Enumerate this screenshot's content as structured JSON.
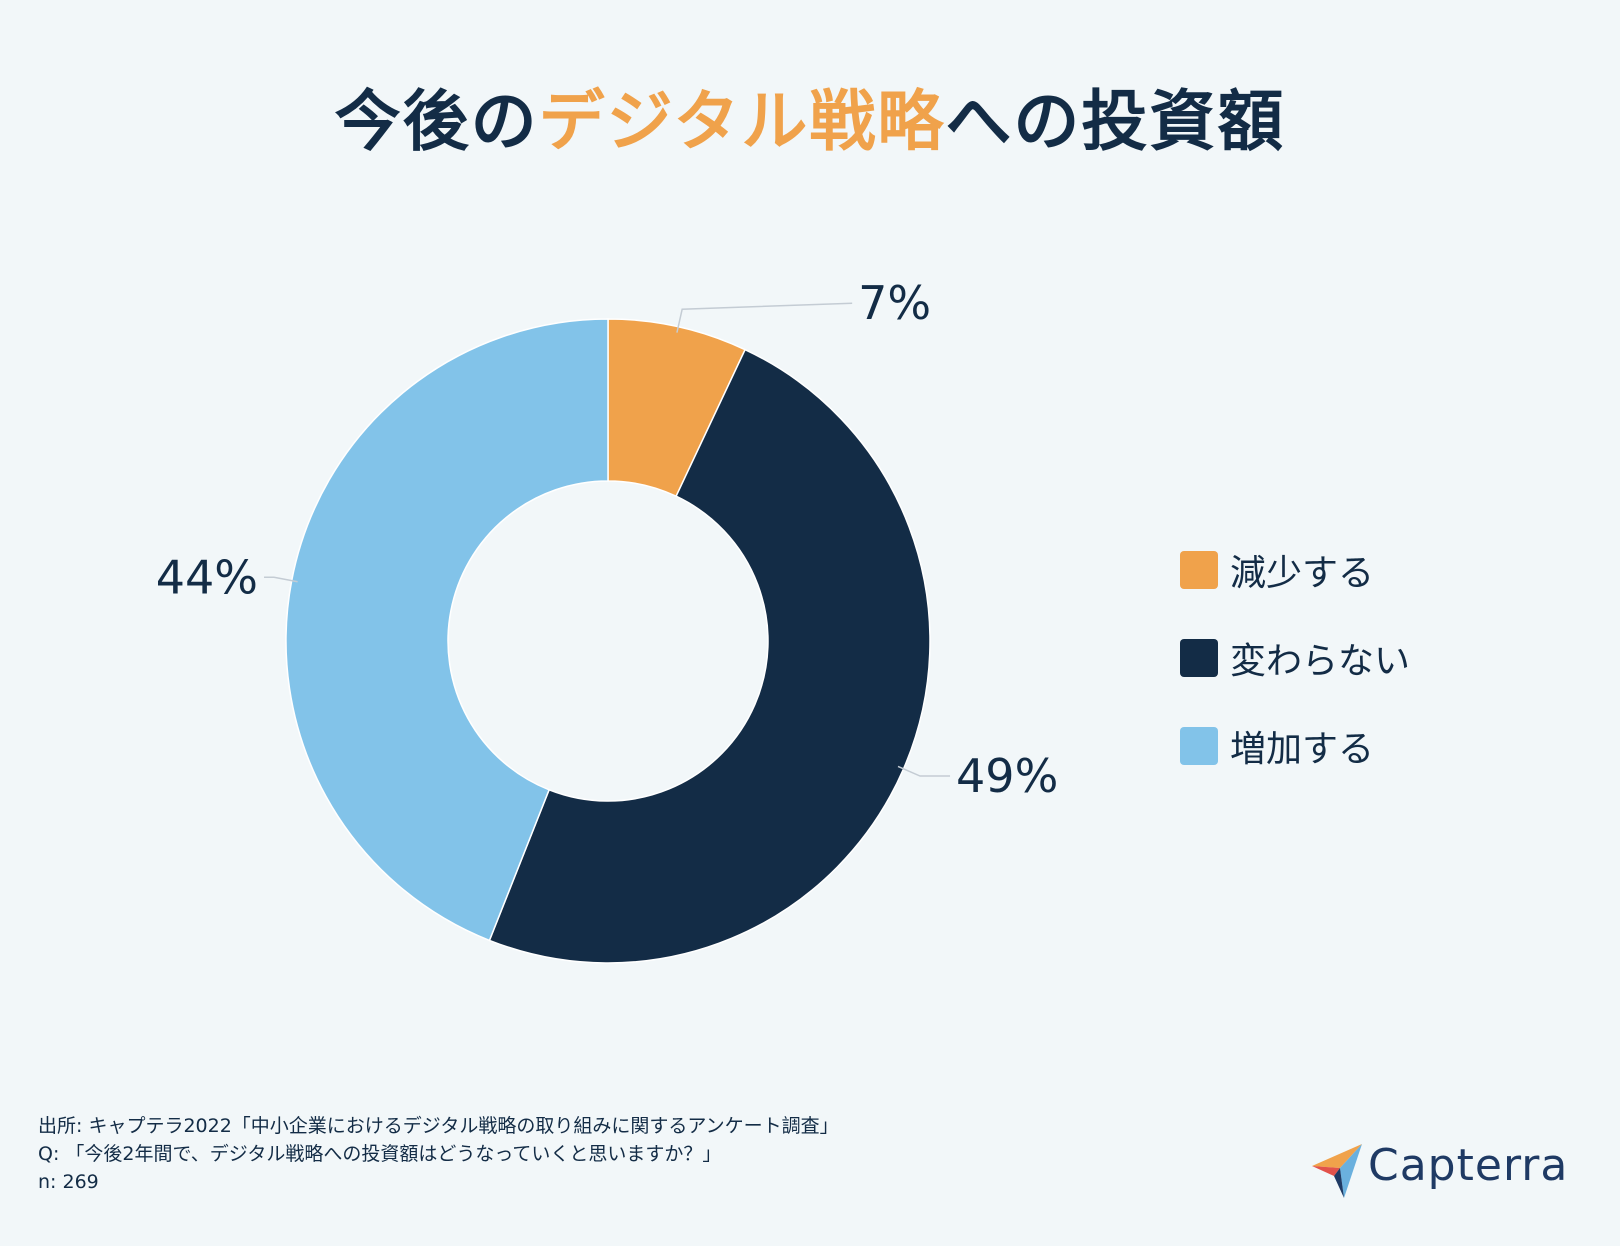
{
  "title": {
    "prefix": "今後の",
    "highlight": "デジタル戦略",
    "suffix": "への投資額"
  },
  "chart_data": {
    "type": "pie",
    "variant": "donut",
    "categories": [
      "減少する",
      "変わらない",
      "増加する"
    ],
    "values": [
      7,
      49,
      44
    ],
    "labels": [
      "7%",
      "49%",
      "44%"
    ],
    "colors": [
      "#f0a24b",
      "#132c46",
      "#82c3e9"
    ],
    "legend_position": "right"
  },
  "legend": {
    "items": [
      {
        "label": "減少する",
        "color": "#f0a24b"
      },
      {
        "label": "変わらない",
        "color": "#132c46"
      },
      {
        "label": "増加する",
        "color": "#82c3e9"
      }
    ]
  },
  "footer": {
    "source": "出所: キャプテラ2022「中小企業におけるデジタル戦略の取り組みに関するアンケート調査」",
    "question": "Q: 「今後2年間で、デジタル戦略への投資額はどうなっていくと思いますか？」",
    "n": "n: 269"
  },
  "logo": {
    "text": "Capterra",
    "icon": "capterra-arrow-logo"
  }
}
